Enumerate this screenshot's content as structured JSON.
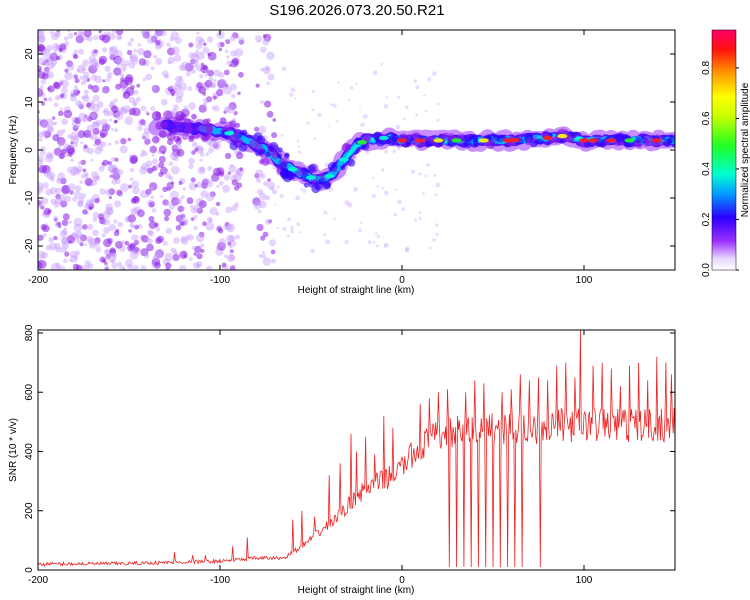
{
  "title": "S196.2026.073.20.50.R21",
  "colors": {
    "snr_line": "#ee2222",
    "spectrum_purple": "#8a1be8",
    "axis": "#000000"
  },
  "chart_data": [
    {
      "type": "heatmap",
      "title": "S196.2026.073.20.50.R21",
      "xlabel": "Height of straight line (km)",
      "ylabel": "Frequency (Hz)",
      "xlim": [
        -200,
        150
      ],
      "ylim": [
        -25,
        25
      ],
      "xticks": [
        -200,
        -100,
        0,
        100
      ],
      "yticks": [
        -20,
        -10,
        0,
        10,
        20
      ],
      "colorbar": {
        "label": "Normalized spectral amplitude",
        "range": [
          0.0,
          0.95
        ],
        "ticks": [
          0.0,
          0.2,
          0.4,
          0.6,
          0.8
        ],
        "tick_labels": [
          "0.0",
          "0.2",
          "0.4",
          "0.6",
          "0.8"
        ],
        "colormap": "rainbow"
      },
      "ridge": {
        "description": "dominant frequency ridge",
        "height_km": [
          -130,
          -110,
          -95,
          -85,
          -75,
          -65,
          -55,
          -45,
          -38,
          -32,
          -25,
          -20,
          -10,
          0,
          20,
          40,
          60,
          80,
          90,
          100,
          120,
          150
        ],
        "frequency_hz": [
          5,
          4.5,
          3.5,
          2,
          0,
          -3,
          -5,
          -6.5,
          -5,
          -2,
          1,
          2,
          2.5,
          2,
          2,
          2,
          2,
          2.5,
          3,
          2,
          2,
          2
        ]
      },
      "noise_region_km": [
        -200,
        -70
      ],
      "gap_km": [
        -88,
        -80
      ]
    },
    {
      "type": "line",
      "xlabel": "Height of straight line (km)",
      "ylabel": "SNR (10 * v/v)",
      "xlim": [
        -200,
        150
      ],
      "ylim": [
        0,
        810
      ],
      "xticks": [
        -200,
        -100,
        0,
        100
      ],
      "yticks": [
        0,
        200,
        400,
        600,
        800
      ],
      "series": [
        {
          "name": "SNR",
          "x": [
            -200,
            -150,
            -100,
            -80,
            -65,
            -55,
            -45,
            -35,
            -25,
            -15,
            -5,
            5,
            15,
            25,
            35,
            50,
            70,
            90,
            100,
            120,
            150
          ],
          "y": [
            20,
            22,
            30,
            40,
            40,
            80,
            130,
            180,
            250,
            290,
            320,
            380,
            440,
            460,
            470,
            480,
            480,
            490,
            490,
            490,
            490
          ]
        }
      ],
      "spikes_up": {
        "x": [
          -125,
          -115,
          -108,
          -93,
          -85,
          -60,
          -55,
          -48,
          -40,
          -34,
          -28,
          -25,
          -20,
          -15,
          -10,
          -5,
          5,
          10,
          15,
          20,
          25,
          30,
          35,
          40,
          45,
          50,
          55,
          60,
          65,
          70,
          75,
          80,
          85,
          90,
          95,
          98,
          105,
          110,
          115,
          120,
          125,
          130,
          135,
          140,
          145,
          148
        ],
        "y": [
          60,
          50,
          50,
          80,
          110,
          170,
          200,
          180,
          320,
          360,
          460,
          400,
          450,
          390,
          520,
          480,
          430,
          560,
          580,
          600,
          610,
          630,
          600,
          640,
          630,
          650,
          600,
          610,
          660,
          640,
          650,
          640,
          690,
          700,
          650,
          810,
          690,
          700,
          680,
          620,
          690,
          700,
          640,
          720,
          700,
          660
        ]
      },
      "dropouts_x": [
        26,
        30,
        34,
        38,
        42,
        46,
        50,
        54,
        58,
        62,
        66,
        76
      ]
    }
  ]
}
